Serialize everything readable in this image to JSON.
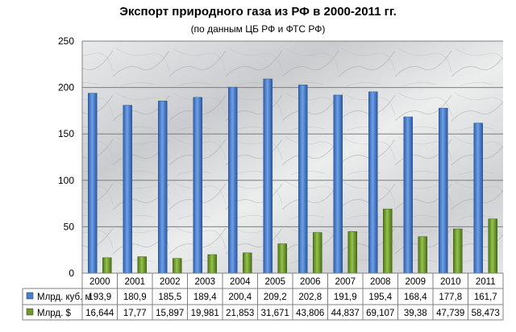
{
  "chart_data": {
    "type": "bar",
    "title": "Экспорт природного газа из РФ в 2000-2011 гг.",
    "subtitle": "(по данным ЦБ РФ и ФТС РФ)",
    "categories": [
      "2000",
      "2001",
      "2002",
      "2003",
      "2004",
      "2005",
      "2006",
      "2007",
      "2008",
      "2009",
      "2010",
      "2011"
    ],
    "ylim": [
      0,
      250
    ],
    "yticks": [
      "0",
      "50",
      "100",
      "150",
      "200",
      "250"
    ],
    "grid": true,
    "legend": "data table",
    "series": [
      {
        "name": "Млрд. куб. м",
        "color": "#4a7fd0",
        "values": [
          193.9,
          180.9,
          185.5,
          189.4,
          200.4,
          209.2,
          202.8,
          191.9,
          195.4,
          168.4,
          177.8,
          161.7
        ],
        "labels": [
          "193,9",
          "180,9",
          "185,5",
          "189,4",
          "200,4",
          "209,2",
          "202,8",
          "191,9",
          "195,4",
          "168,4",
          "177,8",
          "161,7"
        ]
      },
      {
        "name": "Млрд. $",
        "color": "#6f9a2c",
        "values": [
          16.644,
          17.77,
          15.897,
          19.981,
          21.853,
          31.671,
          43.806,
          44.837,
          69.107,
          39.38,
          47.739,
          58.473
        ],
        "labels": [
          "16,644",
          "17,77",
          "15,897",
          "19,981",
          "21,853",
          "31,671",
          "43,806",
          "44,837",
          "69,107",
          "39,38",
          "47,739",
          "58,473"
        ]
      }
    ]
  }
}
